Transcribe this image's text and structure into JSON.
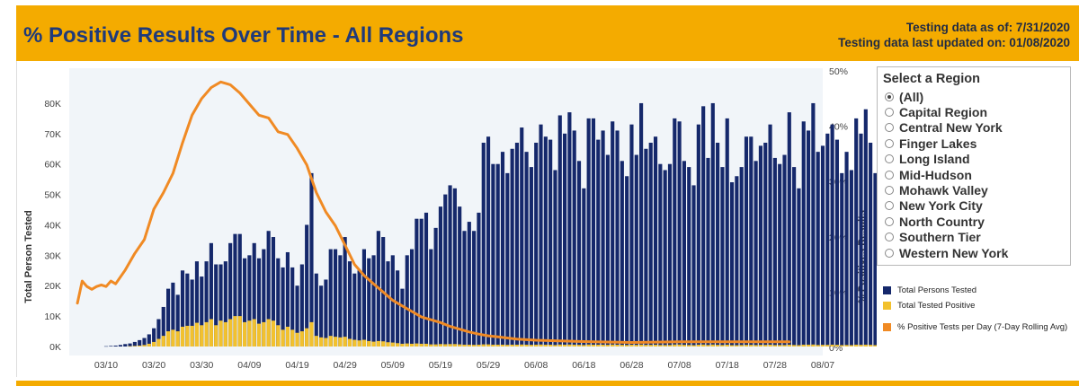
{
  "header": {
    "title": "% Positive Results Over Time - All Regions",
    "as_of": "Testing data as of: 7/31/2020",
    "updated": "Testing data last updated on: 01/08/2020",
    "bg_color": "#f4ab00"
  },
  "region_selector": {
    "title": "Select a Region",
    "selected": "(All)",
    "options": [
      "(All)",
      "Capital Region",
      "Central New York",
      "Finger Lakes",
      "Long Island",
      "Mid-Hudson",
      "Mohawk Valley",
      "New York City",
      "North Country",
      "Southern Tier",
      "Western New York"
    ]
  },
  "legend": {
    "items": [
      {
        "label": "Total Persons Tested",
        "color": "#15286b"
      },
      {
        "label": "Total Tested Positive",
        "color": "#f2c12e"
      },
      {
        "label": "% Positive Tests per Day (7-Day Rolling Avg)",
        "color": "#f08a24"
      }
    ]
  },
  "chart_data": {
    "type": "bar",
    "ylabel": "Total Person Tested",
    "y2label": "% Positives Results",
    "ylim": [
      0,
      85000
    ],
    "y2lim": [
      0,
      50
    ],
    "yticks": [
      "0K",
      "10K",
      "20K",
      "30K",
      "40K",
      "50K",
      "60K",
      "70K",
      "80K"
    ],
    "y2ticks": [
      "0%",
      "10%",
      "20%",
      "30%",
      "40%",
      "50%"
    ],
    "xticks": [
      "03/10",
      "03/20",
      "03/30",
      "04/09",
      "04/19",
      "04/29",
      "05/09",
      "05/19",
      "05/29",
      "06/08",
      "06/18",
      "06/28",
      "07/08",
      "07/18",
      "07/28",
      "08/07"
    ],
    "x_start": "03/04",
    "x_end": "07/31",
    "grid": false,
    "legend_position": "right",
    "series": [
      {
        "name": "Total Persons Tested",
        "color": "#15286b",
        "values": [
          0,
          0,
          0,
          0,
          0,
          0,
          100,
          200,
          300,
          500,
          800,
          1000,
          1500,
          2100,
          2800,
          4000,
          6000,
          9000,
          13000,
          19000,
          21000,
          17000,
          25000,
          24000,
          22000,
          28000,
          23000,
          28000,
          34000,
          27000,
          27000,
          28000,
          34000,
          37000,
          37000,
          29000,
          30000,
          34000,
          29000,
          32000,
          38000,
          36000,
          29000,
          26000,
          31000,
          26000,
          20000,
          27000,
          40000,
          57000,
          24000,
          20000,
          22000,
          32000,
          32000,
          30000,
          36000,
          28000,
          24000,
          25000,
          32000,
          29000,
          30000,
          38000,
          36000,
          28000,
          30000,
          25000,
          19000,
          30000,
          32000,
          42000,
          42000,
          44000,
          32000,
          39000,
          46000,
          50000,
          53000,
          52000,
          46000,
          38000,
          41000,
          38000,
          44000,
          67000,
          69000,
          60000,
          60000,
          64000,
          57000,
          65000,
          67000,
          72000,
          64000,
          59000,
          67000,
          73000,
          69000,
          68000,
          58000,
          76000,
          70000,
          77000,
          71000,
          61000,
          52000,
          75000,
          75000,
          68000,
          71000,
          63000,
          74000,
          71000,
          61000,
          56000,
          73000,
          63000,
          80000,
          65000,
          67000,
          69000,
          60000,
          58000,
          60000,
          75000,
          74000,
          61000,
          59000,
          53000,
          73000,
          79000,
          62000,
          80000,
          67000,
          59000,
          75000,
          54000,
          56000,
          59000,
          69000,
          69000,
          61000,
          66000,
          67000,
          73000,
          62000,
          60000,
          63000,
          77000,
          59000,
          52000,
          74000,
          71000,
          80000,
          64000,
          66000,
          70000,
          73000,
          68000,
          57000,
          64000,
          58000,
          75000,
          70000,
          78000,
          67000,
          57000,
          58000,
          58000,
          64000,
          63000,
          70000,
          70000,
          75000,
          72000,
          83000
        ]
      },
      {
        "name": "Total Tested Positive",
        "color": "#f2c12e",
        "values": [
          0,
          0,
          0,
          0,
          0,
          0,
          0,
          0,
          0,
          0,
          0,
          100,
          200,
          300,
          500,
          900,
          1500,
          2500,
          3500,
          5000,
          5500,
          5000,
          6500,
          6800,
          6800,
          7800,
          7000,
          8000,
          9000,
          7000,
          8500,
          8000,
          9000,
          10000,
          10000,
          8000,
          8500,
          9000,
          7500,
          8000,
          9000,
          8500,
          7000,
          5500,
          6500,
          5500,
          4500,
          5000,
          6000,
          8000,
          3500,
          3000,
          2800,
          3500,
          3200,
          3000,
          3200,
          2500,
          2200,
          2000,
          2200,
          1800,
          1600,
          1800,
          1700,
          1400,
          1300,
          1100,
          900,
          1000,
          900,
          1000,
          900,
          900,
          700,
          700,
          800,
          750,
          800,
          800,
          700,
          600,
          600,
          550,
          600,
          700,
          700,
          600,
          600,
          600,
          550,
          600,
          600,
          650,
          600,
          550,
          600,
          650,
          600,
          600,
          500,
          650,
          600,
          650,
          600,
          550,
          500,
          650,
          600,
          600,
          600,
          550,
          650,
          600,
          550,
          500,
          600,
          550,
          650,
          550,
          550,
          600,
          500,
          500,
          500,
          650,
          650,
          550,
          500,
          450,
          600,
          650,
          500,
          650,
          550,
          500,
          600,
          450,
          450,
          500,
          550,
          550,
          500,
          550,
          550,
          600,
          500,
          500,
          500,
          600,
          500,
          450,
          600,
          600,
          650,
          500,
          550,
          550,
          600,
          550,
          450,
          500,
          450,
          600,
          550,
          600,
          550,
          450,
          450,
          450,
          500,
          500,
          550,
          550,
          600,
          550,
          650
        ]
      },
      {
        "name": "% Positive Tests per Day (7-Day Rolling Avg)",
        "color": "#f08a24",
        "points": [
          [
            "03/04",
            8.0
          ],
          [
            "03/05",
            12.0
          ],
          [
            "03/06",
            11.0
          ],
          [
            "03/07",
            10.5
          ],
          [
            "03/08",
            11.0
          ],
          [
            "03/09",
            11.3
          ],
          [
            "03/10",
            11.0
          ],
          [
            "03/11",
            12.0
          ],
          [
            "03/12",
            11.5
          ],
          [
            "03/14",
            14.0
          ],
          [
            "03/16",
            17.0
          ],
          [
            "03/18",
            19.5
          ],
          [
            "03/20",
            25.0
          ],
          [
            "03/22",
            28.0
          ],
          [
            "03/24",
            31.5
          ],
          [
            "03/26",
            37.0
          ],
          [
            "03/28",
            42.0
          ],
          [
            "03/30",
            45.0
          ],
          [
            "04/01",
            47.0
          ],
          [
            "04/03",
            48.0
          ],
          [
            "04/05",
            47.5
          ],
          [
            "04/07",
            46.0
          ],
          [
            "04/09",
            44.0
          ],
          [
            "04/11",
            42.0
          ],
          [
            "04/13",
            41.5
          ],
          [
            "04/15",
            39.0
          ],
          [
            "04/17",
            38.5
          ],
          [
            "04/19",
            36.0
          ],
          [
            "04/21",
            33.0
          ],
          [
            "04/23",
            28.0
          ],
          [
            "04/25",
            24.5
          ],
          [
            "04/27",
            22.0
          ],
          [
            "04/29",
            18.5
          ],
          [
            "05/01",
            15.0
          ],
          [
            "05/03",
            13.0
          ],
          [
            "05/05",
            11.5
          ],
          [
            "05/07",
            10.0
          ],
          [
            "05/09",
            8.5
          ],
          [
            "05/11",
            7.5
          ],
          [
            "05/13",
            6.5
          ],
          [
            "05/15",
            5.5
          ],
          [
            "05/17",
            5.0
          ],
          [
            "05/19",
            4.5
          ],
          [
            "05/21",
            3.8
          ],
          [
            "05/23",
            3.3
          ],
          [
            "05/25",
            2.8
          ],
          [
            "05/27",
            2.4
          ],
          [
            "05/29",
            2.1
          ],
          [
            "05/31",
            1.9
          ],
          [
            "06/02",
            1.7
          ],
          [
            "06/04",
            1.5
          ],
          [
            "06/06",
            1.4
          ],
          [
            "06/08",
            1.3
          ],
          [
            "06/12",
            1.2
          ],
          [
            "06/16",
            1.1
          ],
          [
            "06/20",
            1.0
          ],
          [
            "06/28",
            0.9
          ],
          [
            "07/08",
            1.0
          ],
          [
            "07/18",
            1.0
          ],
          [
            "07/24",
            1.0
          ],
          [
            "07/31",
            1.0
          ]
        ]
      }
    ]
  }
}
